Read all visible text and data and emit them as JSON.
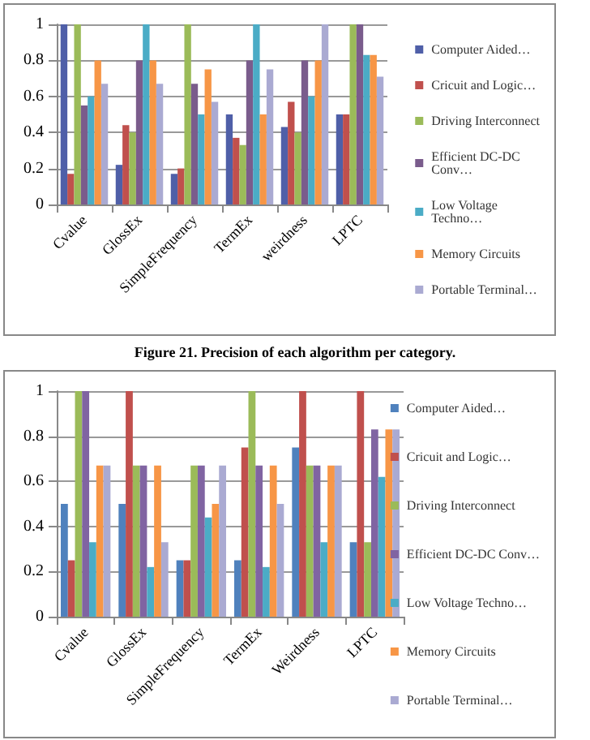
{
  "chart_data": [
    {
      "type": "bar",
      "annotations": [
        "Figure 21. Precision of each algorithm per category."
      ],
      "categories": [
        "Cvalue",
        "GlossEx",
        "SimpleFrequency",
        "TermEx",
        "weirdness",
        "LPTC"
      ],
      "series": [
        {
          "name": "Computer Aided…",
          "color": "#4f5fa8",
          "values": [
            1,
            0.22,
            0.17,
            0.5,
            0.43,
            0.5
          ]
        },
        {
          "name": "Cricuit and Logic…",
          "color": "#c0504d",
          "values": [
            0.17,
            0.44,
            0.2,
            0.37,
            0.57,
            0.5
          ]
        },
        {
          "name": "Driving Interconnect",
          "color": "#9bbb59",
          "values": [
            1,
            0.4,
            1,
            0.33,
            0.4,
            1
          ]
        },
        {
          "name": "Efficient DC-DC Conv…",
          "color": "#7a5c8c",
          "values": [
            0.55,
            0.8,
            0.67,
            0.8,
            0.8,
            1
          ]
        },
        {
          "name": "Low Voltage Techno…",
          "color": "#4bacc6",
          "values": [
            0.6,
            1,
            0.5,
            1,
            0.6,
            0.83
          ]
        },
        {
          "name": "Memory Circuits",
          "color": "#f79646",
          "values": [
            0.8,
            0.8,
            0.75,
            0.5,
            0.8,
            0.83
          ]
        },
        {
          "name": "Portable Terminal…",
          "color": "#aaaad2",
          "values": [
            0.67,
            0.67,
            0.57,
            0.75,
            1,
            0.71
          ]
        }
      ],
      "ylim": [
        0,
        1
      ],
      "yticks": [
        0,
        0.2,
        0.4,
        0.6,
        0.8,
        1
      ],
      "grid": "y",
      "legend": "right"
    },
    {
      "type": "bar",
      "categories": [
        "Cvalue",
        "GlossEx",
        "SimpleFrequency",
        "TermEx",
        "Weirdness",
        "LPTC"
      ],
      "series": [
        {
          "name": "Computer Aided…",
          "color": "#4f81bd",
          "values": [
            0.5,
            0.5,
            0.25,
            0.25,
            0.75,
            0.33
          ]
        },
        {
          "name": "Cricuit and Logic…",
          "color": "#c0504d",
          "values": [
            0.25,
            1,
            0.25,
            0.75,
            1,
            1
          ]
        },
        {
          "name": "Driving Interconnect",
          "color": "#9bbb59",
          "values": [
            1,
            0.67,
            0.67,
            1,
            0.67,
            0.33
          ]
        },
        {
          "name": "Efficient DC-DC Conv…",
          "color": "#8064a2",
          "values": [
            1,
            0.67,
            0.67,
            0.67,
            0.67,
            0.83
          ]
        },
        {
          "name": "Low Voltage Techno…",
          "color": "#4bacc6",
          "values": [
            0.33,
            0.22,
            0.44,
            0.22,
            0.33,
            0.62
          ]
        },
        {
          "name": "Memory Circuits",
          "color": "#f79646",
          "values": [
            0.67,
            0.67,
            0.5,
            0.67,
            0.67,
            0.83
          ]
        },
        {
          "name": "Portable Terminal…",
          "color": "#aaaad2",
          "values": [
            0.67,
            0.33,
            0.67,
            0.5,
            0.67,
            0.83
          ]
        }
      ],
      "ylim": [
        0,
        1
      ],
      "yticks": [
        0,
        0.2,
        0.4,
        0.6,
        0.8,
        1
      ],
      "grid": "y",
      "legend": "right"
    }
  ]
}
